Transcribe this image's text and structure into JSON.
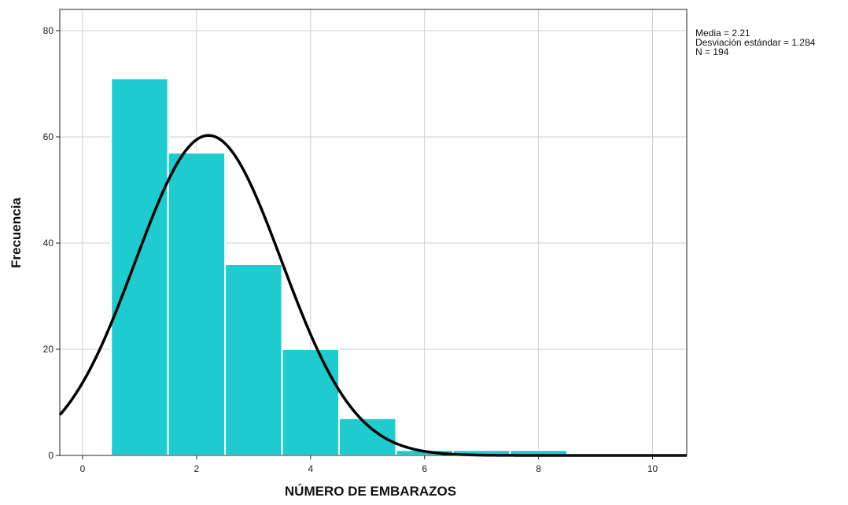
{
  "chart_data": {
    "type": "bar",
    "xlabel": "NÚMERO DE EMBARAZOS",
    "ylabel": "Frecuencia",
    "xlim": [
      -0.4,
      10.6
    ],
    "ylim": [
      0,
      84
    ],
    "x_ticks": [
      0,
      2,
      4,
      6,
      8,
      10
    ],
    "y_ticks": [
      0,
      20,
      40,
      60,
      80
    ],
    "bins": [
      {
        "x0": 0.5,
        "x1": 1.5,
        "value": 71
      },
      {
        "x0": 1.5,
        "x1": 2.5,
        "value": 57
      },
      {
        "x0": 2.5,
        "x1": 3.5,
        "value": 36
      },
      {
        "x0": 3.5,
        "x1": 4.5,
        "value": 20
      },
      {
        "x0": 4.5,
        "x1": 5.5,
        "value": 7
      },
      {
        "x0": 5.5,
        "x1": 6.5,
        "value": 1
      },
      {
        "x0": 6.5,
        "x1": 7.5,
        "value": 1
      },
      {
        "x0": 7.5,
        "x1": 8.5,
        "value": 1
      }
    ],
    "normal_curve": {
      "mean": 2.21,
      "std": 1.284,
      "n": 194,
      "bin_width": 1
    },
    "grid": true,
    "bar_color": "#1ecbcf",
    "curve_color": "#000000"
  },
  "stats_box": {
    "mean_label": "Media = 2.21",
    "std_label": "Desviación estándar = 1.284",
    "n_label": "N = 194"
  }
}
